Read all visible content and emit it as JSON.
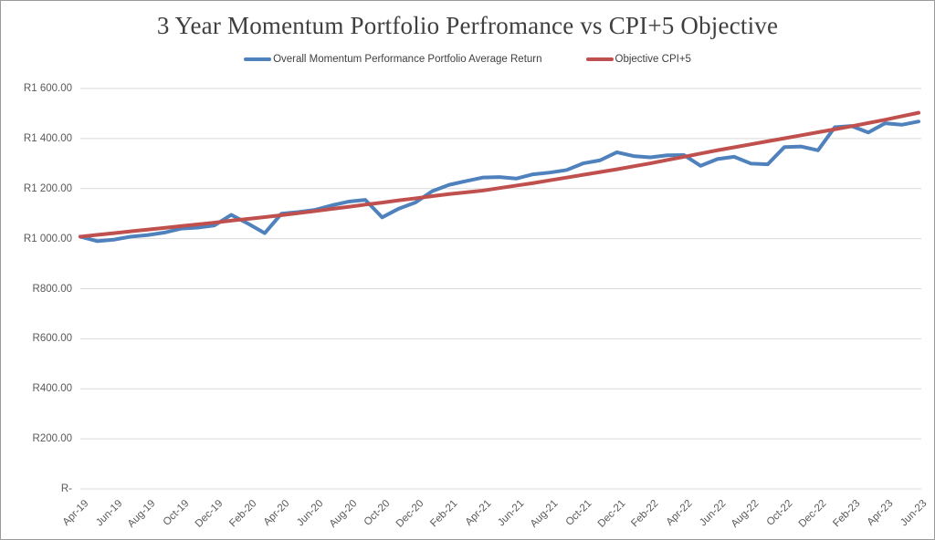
{
  "chart_data": {
    "type": "line",
    "title": "3 Year Momentum Portfolio Perfromance vs CPI+5 Objective",
    "legend_position": "top",
    "grid": "horizontal",
    "currency_prefix": "R",
    "months": [
      "Apr-19",
      "May-19",
      "Jun-19",
      "Jul-19",
      "Aug-19",
      "Sep-19",
      "Oct-19",
      "Nov-19",
      "Dec-19",
      "Jan-20",
      "Feb-20",
      "Mar-20",
      "Apr-20",
      "May-20",
      "Jun-20",
      "Jul-20",
      "Aug-20",
      "Sep-20",
      "Oct-20",
      "Nov-20",
      "Dec-20",
      "Jan-21",
      "Feb-21",
      "Mar-21",
      "Apr-21",
      "May-21",
      "Jun-21",
      "Jul-21",
      "Aug-21",
      "Sep-21",
      "Oct-21",
      "Nov-21",
      "Dec-21",
      "Jan-22",
      "Feb-22",
      "Mar-22",
      "Apr-22",
      "May-22",
      "Jun-22",
      "Jul-22",
      "Aug-22",
      "Sep-22",
      "Oct-22",
      "Nov-22",
      "Dec-22",
      "Jan-23",
      "Feb-23",
      "Mar-23",
      "Apr-23",
      "May-23",
      "Jun-23"
    ],
    "x_tick_every": 2,
    "series": [
      {
        "name": "Overall Momentum Performance Portfolio Average Return",
        "color": "#4F81BD",
        "values": [
          1008,
          990,
          996,
          1008,
          1014,
          1024,
          1040,
          1044,
          1053,
          1095,
          1060,
          1022,
          1100,
          1106,
          1115,
          1133,
          1148,
          1155,
          1085,
          1120,
          1145,
          1190,
          1215,
          1230,
          1244,
          1246,
          1240,
          1257,
          1264,
          1274,
          1301,
          1313,
          1345,
          1330,
          1325,
          1333,
          1334,
          1291,
          1318,
          1327,
          1300,
          1297,
          1366,
          1368,
          1353,
          1445,
          1450,
          1424,
          1461,
          1455,
          1468
        ]
      },
      {
        "name": "Objective CPI+5",
        "color": "#C0504D",
        "values": [
          1008,
          1015,
          1022,
          1029,
          1036,
          1043,
          1050,
          1057,
          1064,
          1072,
          1079,
          1086,
          1094,
          1102,
          1110,
          1119,
          1127,
          1136,
          1144,
          1153,
          1161,
          1170,
          1178,
          1185,
          1192,
          1202,
          1212,
          1222,
          1233,
          1244,
          1255,
          1266,
          1277,
          1289,
          1301,
          1314,
          1327,
          1340,
          1353,
          1365,
          1377,
          1389,
          1401,
          1413,
          1425,
          1437,
          1449,
          1462,
          1475,
          1489,
          1503
        ]
      }
    ],
    "ylim": [
      0,
      1600
    ],
    "y_ticks": [
      {
        "value": 1600,
        "label": "R1 600.00"
      },
      {
        "value": 1400,
        "label": "R1 400.00"
      },
      {
        "value": 1200,
        "label": "R1 200.00"
      },
      {
        "value": 1000,
        "label": "R1 000.00"
      },
      {
        "value": 800,
        "label": "R800.00"
      },
      {
        "value": 600,
        "label": "R600.00"
      },
      {
        "value": 400,
        "label": "R400.00"
      },
      {
        "value": 200,
        "label": "R200.00"
      },
      {
        "value": 0,
        "label": "R-"
      }
    ],
    "gridline_color": "#d9d9d9",
    "axis_text_color": "#595959"
  }
}
